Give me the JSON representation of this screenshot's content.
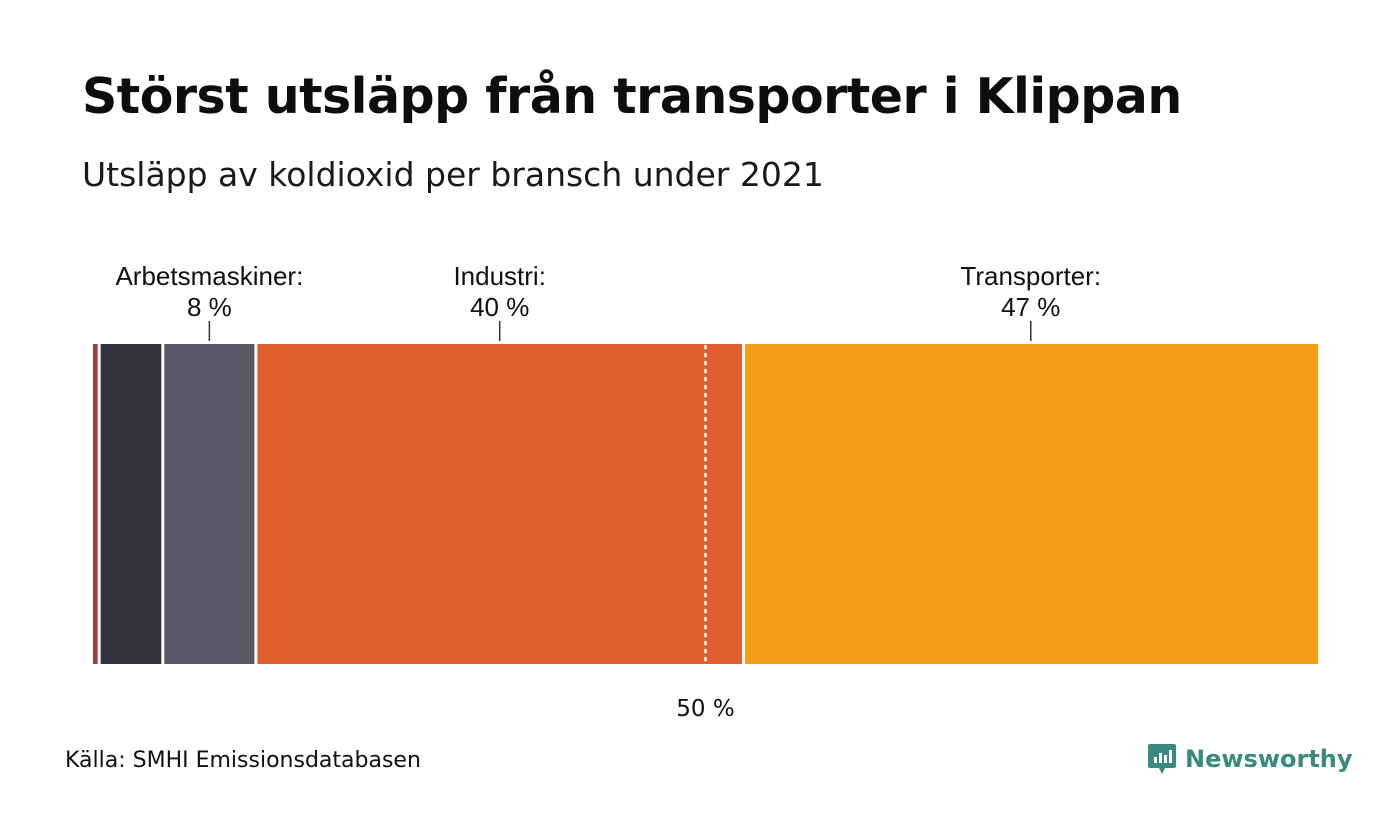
{
  "title": "Störst utsläpp från transporter i Klippan",
  "subtitle": "Utsläpp av koldioxid per bransch under 2021",
  "source": "Källa: SMHI Emissionsdatabasen",
  "brand": "Newsworthy",
  "chart_data": {
    "type": "bar",
    "orientation": "horizontal-stacked-100",
    "title": "Störst utsläpp från transporter i Klippan",
    "subtitle": "Utsläpp av koldioxid per bransch under 2021",
    "xlim": [
      0,
      100
    ],
    "reference_line": {
      "value": 50,
      "label": "50 %",
      "style": "dotted"
    },
    "segments": [
      {
        "value": 0.5,
        "color": "#a33a3a",
        "label": null,
        "value_label": null
      },
      {
        "value": 5.2,
        "color": "#343340",
        "label": null,
        "value_label": null
      },
      {
        "value": 7.6,
        "color": "#5a5866",
        "label": "Arbetsmaskiner:",
        "value_label": "8 %"
      },
      {
        "value": 39.8,
        "color": "#e05e2e",
        "label": "Industri:",
        "value_label": "40 %"
      },
      {
        "value": 46.9,
        "color": "#f59e1a",
        "label": "Transporter:",
        "value_label": "47 %"
      }
    ]
  }
}
